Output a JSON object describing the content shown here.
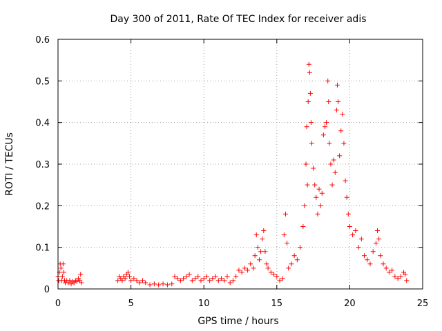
{
  "chart_data": {
    "type": "scatter",
    "title": "Day 300 of 2011, Rate Of TEC Index for receiver adis",
    "xlabel": "GPS time / hours",
    "ylabel": "ROTI / TECUs",
    "xlim": [
      0,
      25
    ],
    "ylim": [
      0,
      0.6
    ],
    "x_ticks": [
      "0",
      "5",
      "10",
      "15",
      "20",
      "25"
    ],
    "y_ticks": [
      "0",
      "0.1",
      "0.2",
      "0.3",
      "0.4",
      "0.5",
      "0.6"
    ],
    "x_tick_values": [
      0,
      5,
      10,
      15,
      20,
      25
    ],
    "y_tick_values": [
      0,
      0.1,
      0.2,
      0.3,
      0.4,
      0.5,
      0.6
    ],
    "grid": true,
    "marker": "plus",
    "color": "#ff0000",
    "series": [
      {
        "name": "",
        "points": [
          [
            0.0,
            0.03
          ],
          [
            0.05,
            0.02
          ],
          [
            0.1,
            0.04
          ],
          [
            0.15,
            0.06
          ],
          [
            0.2,
            0.05
          ],
          [
            0.25,
            0.02
          ],
          [
            0.3,
            0.03
          ],
          [
            0.35,
            0.06
          ],
          [
            0.4,
            0.04
          ],
          [
            0.45,
            0.02
          ],
          [
            0.5,
            0.015
          ],
          [
            0.6,
            0.02
          ],
          [
            0.7,
            0.015
          ],
          [
            0.8,
            0.02
          ],
          [
            0.9,
            0.012
          ],
          [
            1.0,
            0.018
          ],
          [
            1.1,
            0.015
          ],
          [
            1.2,
            0.02
          ],
          [
            1.3,
            0.018
          ],
          [
            1.4,
            0.025
          ],
          [
            1.5,
            0.02
          ],
          [
            1.55,
            0.035
          ],
          [
            1.6,
            0.015
          ],
          [
            4.1,
            0.02
          ],
          [
            4.2,
            0.03
          ],
          [
            4.3,
            0.025
          ],
          [
            4.4,
            0.02
          ],
          [
            4.5,
            0.03
          ],
          [
            4.6,
            0.025
          ],
          [
            4.7,
            0.035
          ],
          [
            4.8,
            0.04
          ],
          [
            4.9,
            0.03
          ],
          [
            5.0,
            0.02
          ],
          [
            5.2,
            0.025
          ],
          [
            5.4,
            0.02
          ],
          [
            5.6,
            0.015
          ],
          [
            5.8,
            0.02
          ],
          [
            6.0,
            0.015
          ],
          [
            6.3,
            0.01
          ],
          [
            6.6,
            0.012
          ],
          [
            6.9,
            0.01
          ],
          [
            7.2,
            0.012
          ],
          [
            7.5,
            0.01
          ],
          [
            7.8,
            0.012
          ],
          [
            8.0,
            0.03
          ],
          [
            8.2,
            0.025
          ],
          [
            8.4,
            0.02
          ],
          [
            8.6,
            0.025
          ],
          [
            8.8,
            0.03
          ],
          [
            9.0,
            0.035
          ],
          [
            9.2,
            0.02
          ],
          [
            9.4,
            0.025
          ],
          [
            9.6,
            0.03
          ],
          [
            9.8,
            0.02
          ],
          [
            10.0,
            0.025
          ],
          [
            10.2,
            0.03
          ],
          [
            10.4,
            0.02
          ],
          [
            10.6,
            0.025
          ],
          [
            10.8,
            0.03
          ],
          [
            11.0,
            0.02
          ],
          [
            11.2,
            0.025
          ],
          [
            11.4,
            0.02
          ],
          [
            11.6,
            0.03
          ],
          [
            11.8,
            0.015
          ],
          [
            12.0,
            0.02
          ],
          [
            12.2,
            0.03
          ],
          [
            12.4,
            0.045
          ],
          [
            12.6,
            0.04
          ],
          [
            12.8,
            0.05
          ],
          [
            13.0,
            0.045
          ],
          [
            13.2,
            0.06
          ],
          [
            13.4,
            0.05
          ],
          [
            13.5,
            0.08
          ],
          [
            13.6,
            0.13
          ],
          [
            13.7,
            0.1
          ],
          [
            13.8,
            0.07
          ],
          [
            13.9,
            0.09
          ],
          [
            14.0,
            0.12
          ],
          [
            14.1,
            0.14
          ],
          [
            14.2,
            0.09
          ],
          [
            14.3,
            0.06
          ],
          [
            14.4,
            0.05
          ],
          [
            14.6,
            0.04
          ],
          [
            14.8,
            0.035
          ],
          [
            15.0,
            0.03
          ],
          [
            15.2,
            0.02
          ],
          [
            15.4,
            0.025
          ],
          [
            15.5,
            0.13
          ],
          [
            15.6,
            0.18
          ],
          [
            15.7,
            0.11
          ],
          [
            15.8,
            0.05
          ],
          [
            16.0,
            0.06
          ],
          [
            16.2,
            0.08
          ],
          [
            16.4,
            0.07
          ],
          [
            16.6,
            0.1
          ],
          [
            16.8,
            0.15
          ],
          [
            16.9,
            0.2
          ],
          [
            17.0,
            0.3
          ],
          [
            17.05,
            0.39
          ],
          [
            17.1,
            0.25
          ],
          [
            17.15,
            0.45
          ],
          [
            17.2,
            0.54
          ],
          [
            17.25,
            0.52
          ],
          [
            17.3,
            0.47
          ],
          [
            17.35,
            0.4
          ],
          [
            17.4,
            0.35
          ],
          [
            17.5,
            0.29
          ],
          [
            17.6,
            0.25
          ],
          [
            17.7,
            0.22
          ],
          [
            17.8,
            0.18
          ],
          [
            17.9,
            0.24
          ],
          [
            18.0,
            0.2
          ],
          [
            18.1,
            0.23
          ],
          [
            18.2,
            0.37
          ],
          [
            18.3,
            0.39
          ],
          [
            18.4,
            0.4
          ],
          [
            18.5,
            0.5
          ],
          [
            18.55,
            0.45
          ],
          [
            18.6,
            0.35
          ],
          [
            18.7,
            0.3
          ],
          [
            18.8,
            0.25
          ],
          [
            18.9,
            0.31
          ],
          [
            19.0,
            0.28
          ],
          [
            19.1,
            0.43
          ],
          [
            19.15,
            0.49
          ],
          [
            19.2,
            0.45
          ],
          [
            19.3,
            0.32
          ],
          [
            19.4,
            0.38
          ],
          [
            19.5,
            0.42
          ],
          [
            19.6,
            0.35
          ],
          [
            19.7,
            0.26
          ],
          [
            19.8,
            0.22
          ],
          [
            19.9,
            0.18
          ],
          [
            20.0,
            0.15
          ],
          [
            20.2,
            0.13
          ],
          [
            20.4,
            0.14
          ],
          [
            20.6,
            0.1
          ],
          [
            20.8,
            0.12
          ],
          [
            21.0,
            0.08
          ],
          [
            21.2,
            0.07
          ],
          [
            21.4,
            0.06
          ],
          [
            21.6,
            0.09
          ],
          [
            21.8,
            0.11
          ],
          [
            21.9,
            0.14
          ],
          [
            22.0,
            0.12
          ],
          [
            22.1,
            0.08
          ],
          [
            22.3,
            0.06
          ],
          [
            22.5,
            0.05
          ],
          [
            22.7,
            0.04
          ],
          [
            22.9,
            0.045
          ],
          [
            23.1,
            0.03
          ],
          [
            23.3,
            0.025
          ],
          [
            23.5,
            0.03
          ],
          [
            23.7,
            0.04
          ],
          [
            23.8,
            0.035
          ],
          [
            23.9,
            0.02
          ]
        ]
      }
    ]
  }
}
